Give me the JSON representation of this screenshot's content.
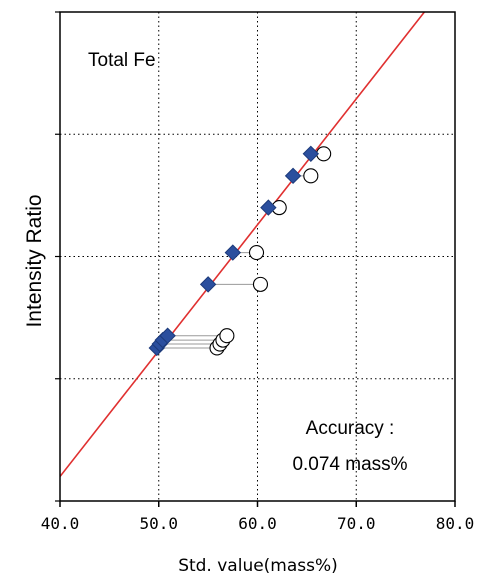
{
  "chart_data": {
    "type": "scatter",
    "title": "Total Fe",
    "xlabel": "Std. value(mass%)",
    "ylabel": "Intensity Ratio",
    "xlim": [
      40.0,
      80.0
    ],
    "xticks": [
      "40.0",
      "50.0",
      "60.0",
      "70.0",
      "80.0"
    ],
    "grid": true,
    "annotation": {
      "line1": "Accuracy :",
      "line2": "0.074 mass%"
    },
    "colors": {
      "fit_line": "#e03030",
      "calibrated_fill": "#2b4f9e",
      "calibrated_stroke": "#1c3a7a",
      "measured_stroke": "#000000",
      "connector": "#9a9a9a",
      "grid": "#000000"
    },
    "fit_line": {
      "x": [
        40.0,
        76.9
      ],
      "y": [
        0.05,
        1.0
      ]
    },
    "points": [
      {
        "calibrated_x": 49.8,
        "measured_x": 55.9,
        "y": 0.313
      },
      {
        "calibrated_x": 50.1,
        "measured_x": 56.2,
        "y": 0.321
      },
      {
        "calibrated_x": 50.4,
        "measured_x": 56.5,
        "y": 0.329
      },
      {
        "calibrated_x": 50.9,
        "measured_x": 56.9,
        "y": 0.338
      },
      {
        "calibrated_x": 55.0,
        "measured_x": 60.3,
        "y": 0.443
      },
      {
        "calibrated_x": 57.5,
        "measured_x": 59.9,
        "y": 0.508
      },
      {
        "calibrated_x": 61.1,
        "measured_x": 62.2,
        "y": 0.6
      },
      {
        "calibrated_x": 63.6,
        "measured_x": 65.4,
        "y": 0.665
      },
      {
        "calibrated_x": 65.4,
        "measured_x": 66.7,
        "y": 0.71
      }
    ]
  }
}
